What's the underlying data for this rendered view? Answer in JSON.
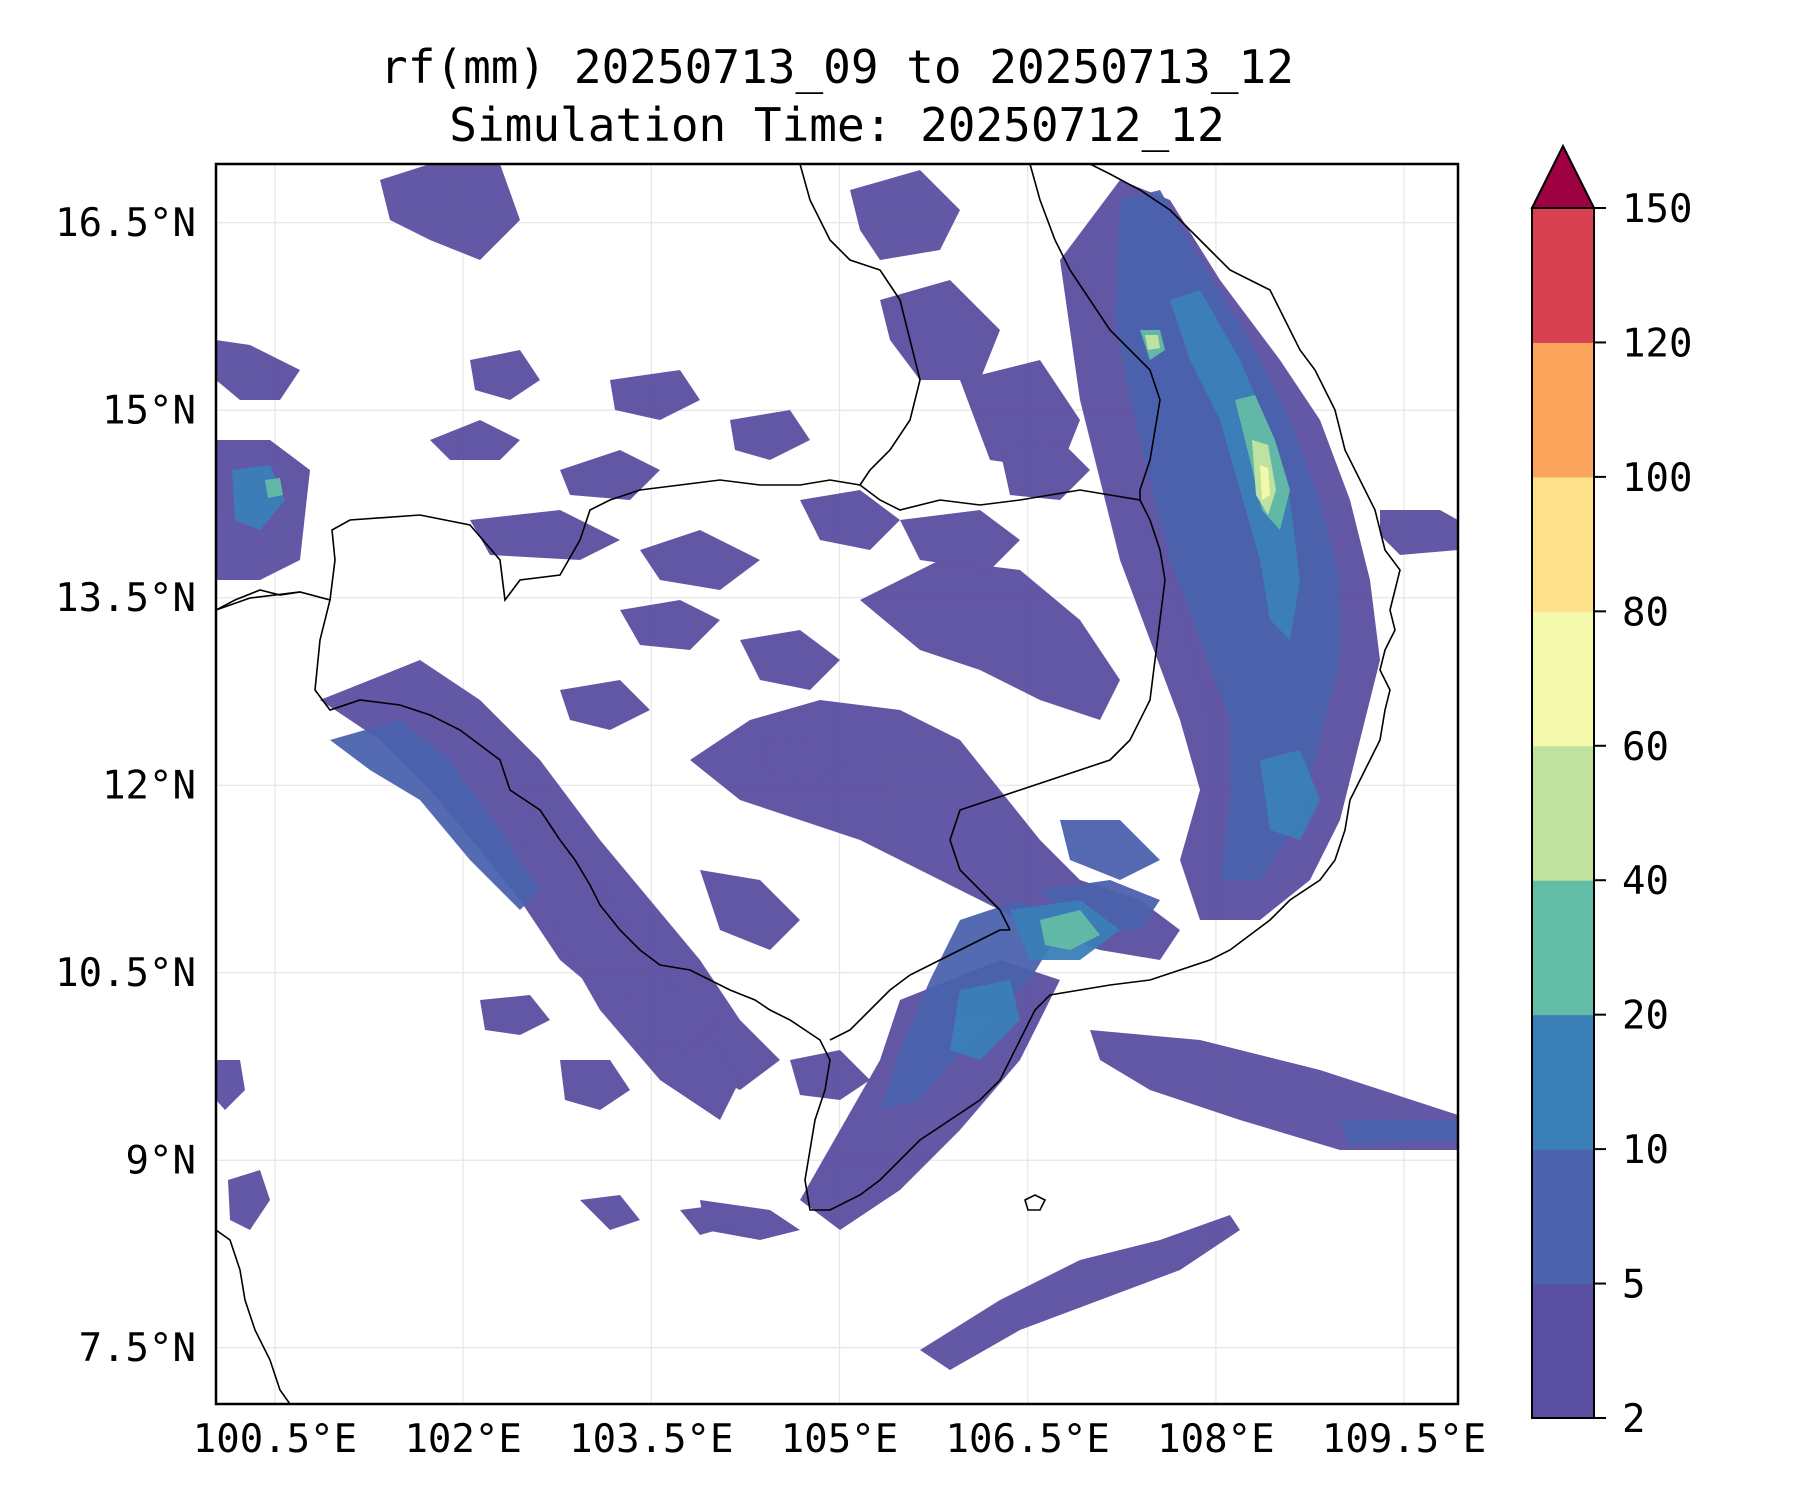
{
  "title": {
    "line1": "rf(mm) 20250713_09 to 20250713_12",
    "line2": "Simulation Time: 20250712_12"
  },
  "map": {
    "lon_range": [
      100.03,
      109.93
    ],
    "lat_range": [
      7.05,
      16.97
    ],
    "lon_ticks": [
      "100.5°E",
      "102°E",
      "103.5°E",
      "105°E",
      "106.5°E",
      "108°E",
      "109.5°E"
    ],
    "lat_ticks": [
      "16.5°N",
      "15°N",
      "13.5°N",
      "12°N",
      "10.5°N",
      "9°N",
      "7.5°N"
    ],
    "grid": true
  },
  "colorbar": {
    "levels": [
      "2",
      "5",
      "10",
      "20",
      "40",
      "60",
      "80",
      "100",
      "120",
      "150"
    ],
    "colors": [
      "#5a4fa0",
      "#4b62ad",
      "#3a7fb8",
      "#63bca5",
      "#bfe2a0",
      "#f2f9aa",
      "#fde08a",
      "#fba55c",
      "#d6404f",
      "#9e0142"
    ],
    "extend": "max"
  }
}
